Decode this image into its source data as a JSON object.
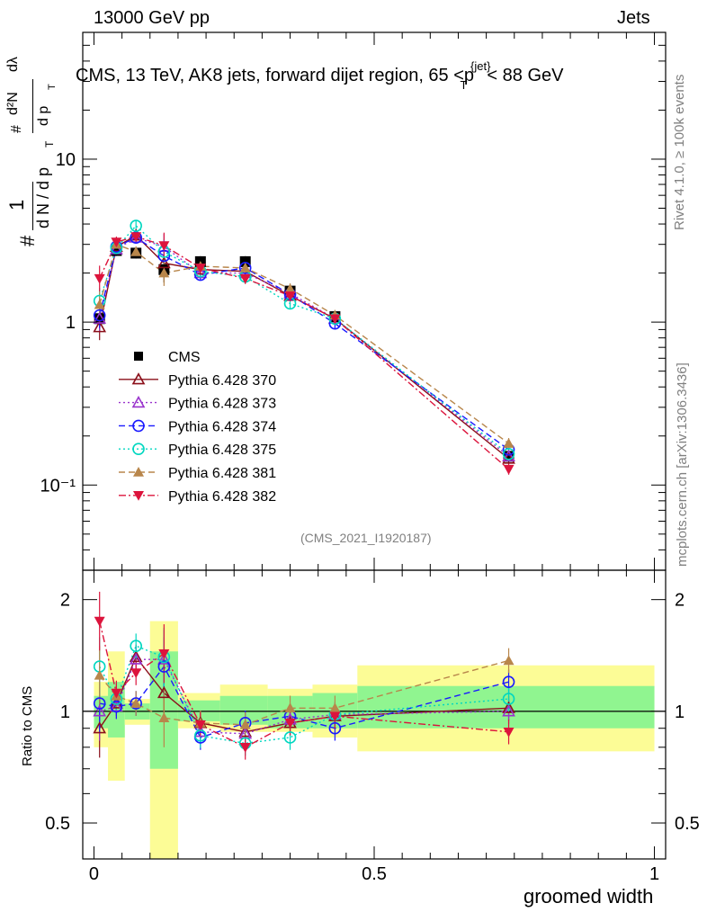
{
  "header": {
    "left": "13000 GeV pp",
    "right": "Jets"
  },
  "side_labels": {
    "rivet": "Rivet 4.1.0, ≥ 100k events",
    "mcplots": "mcplots.cern.ch [arXiv:1306.3436]"
  },
  "colors": {
    "CMS": "#000000",
    "p370": "#8b0f1a",
    "p373": "#9932cc",
    "p374": "#1a1aff",
    "p375": "#00d7c0",
    "p381": "#b8864b",
    "p382": "#dc143c",
    "band_inner": "#90f590",
    "band_outer": "#fcfc96"
  },
  "chart_data": [
    {
      "type": "scatter",
      "title": "CMS, 13 TeV, AK8 jets, forward dijet region, 65 <p_T^{jet}< 88 GeV",
      "analysis_tag": "(CMS_2021_I1920187)",
      "ylabel_parts": {
        "frac_num": "1",
        "frac_den": "d N / d p",
        "sub": "T",
        "hash": "#",
        "deriv_num": "d²N",
        "deriv_den": "d p",
        "lambda": "dλ"
      },
      "yscale": "log",
      "ylim": [
        0.03,
        60
      ],
      "xlim": [
        -0.02,
        1.02
      ],
      "yticks": [
        {
          "v": 0.1,
          "label": "10⁻¹"
        },
        {
          "v": 1,
          "label": "1"
        },
        {
          "v": 10,
          "label": "10"
        }
      ],
      "x": [
        0.01,
        0.04,
        0.075,
        0.125,
        0.19,
        0.27,
        0.35,
        0.43,
        0.74
      ],
      "series": [
        {
          "name": "CMS",
          "key": "CMS",
          "marker": "square",
          "values": [
            1.05,
            2.75,
            2.65,
            2.1,
            2.35,
            2.35,
            1.55,
            1.08,
            0.15
          ]
        },
        {
          "name": "Pythia 6.428 370",
          "key": "p370",
          "marker": "triangle-open",
          "dash": "solid",
          "values": [
            0.93,
            2.9,
            3.4,
            2.3,
            2.1,
            2.05,
            1.45,
            1.05,
            0.145
          ]
        },
        {
          "name": "Pythia 6.428 373",
          "key": "p373",
          "marker": "triangle-open",
          "dash": "dotted",
          "values": [
            1.05,
            2.8,
            3.3,
            2.9,
            2.0,
            2.0,
            1.5,
            1.05,
            0.15
          ]
        },
        {
          "name": "Pythia 6.428 374",
          "key": "p374",
          "marker": "circle-open",
          "dash": "dashed",
          "values": [
            1.1,
            2.9,
            3.3,
            2.55,
            1.95,
            2.15,
            1.48,
            0.98,
            0.165
          ]
        },
        {
          "name": "Pythia 6.428 375",
          "key": "p375",
          "marker": "circle-open",
          "dash": "dotted",
          "values": [
            1.35,
            2.85,
            3.9,
            2.7,
            2.05,
            1.9,
            1.3,
            1.05,
            0.155
          ]
        },
        {
          "name": "Pythia 6.428 381",
          "key": "p381",
          "marker": "triangle-filled",
          "dash": "dashed",
          "values": [
            1.28,
            3.0,
            2.7,
            2.0,
            2.2,
            2.15,
            1.6,
            1.1,
            0.18
          ]
        },
        {
          "name": "Pythia 6.428 382",
          "key": "p382",
          "marker": "triangle-down",
          "dash": "dashdot",
          "values": [
            1.85,
            3.1,
            3.35,
            2.95,
            2.15,
            1.85,
            1.45,
            1.05,
            0.125
          ]
        }
      ]
    },
    {
      "type": "scatter",
      "ylabel": "Ratio to CMS",
      "xlabel": "groomed width",
      "yscale": "log",
      "ylim": [
        0.4,
        2.4
      ],
      "xlim": [
        -0.02,
        1.02
      ],
      "xticks": [
        {
          "v": 0,
          "label": "0"
        },
        {
          "v": 0.5,
          "label": "0.5"
        },
        {
          "v": 1,
          "label": "1"
        }
      ],
      "yticks": [
        {
          "v": 0.5,
          "label": "0.5"
        },
        {
          "v": 1,
          "label": "1"
        },
        {
          "v": 2,
          "label": "2"
        }
      ],
      "bands": [
        {
          "x0": 0.0,
          "x1": 0.025,
          "inner": [
            0.9,
            1.1
          ],
          "outer": [
            0.8,
            1.2
          ]
        },
        {
          "x0": 0.025,
          "x1": 0.055,
          "inner": [
            0.85,
            1.2
          ],
          "outer": [
            0.65,
            1.45
          ]
        },
        {
          "x0": 0.055,
          "x1": 0.1,
          "inner": [
            0.95,
            1.05
          ],
          "outer": [
            0.92,
            1.08
          ]
        },
        {
          "x0": 0.1,
          "x1": 0.15,
          "inner": [
            0.7,
            1.45
          ],
          "outer": [
            0.4,
            1.75
          ]
        },
        {
          "x0": 0.15,
          "x1": 0.225,
          "inner": [
            0.94,
            1.07
          ],
          "outer": [
            0.9,
            1.12
          ]
        },
        {
          "x0": 0.225,
          "x1": 0.31,
          "inner": [
            0.92,
            1.1
          ],
          "outer": [
            0.88,
            1.18
          ]
        },
        {
          "x0": 0.31,
          "x1": 0.39,
          "inner": [
            0.9,
            1.1
          ],
          "outer": [
            0.88,
            1.15
          ]
        },
        {
          "x0": 0.39,
          "x1": 0.47,
          "inner": [
            0.9,
            1.12
          ],
          "outer": [
            0.85,
            1.18
          ]
        },
        {
          "x0": 0.47,
          "x1": 1.0,
          "inner": [
            0.9,
            1.17
          ],
          "outer": [
            0.78,
            1.33
          ]
        }
      ],
      "x": [
        0.01,
        0.04,
        0.075,
        0.125,
        0.19,
        0.27,
        0.35,
        0.43,
        0.74
      ],
      "series": [
        {
          "name": "Pythia 6.428 370",
          "key": "p370",
          "marker": "triangle-open",
          "dash": "solid",
          "values": [
            0.9,
            1.05,
            1.4,
            1.12,
            0.93,
            0.88,
            0.93,
            0.97,
            1.02
          ]
        },
        {
          "name": "Pythia 6.428 373",
          "key": "p373",
          "marker": "triangle-open",
          "dash": "dotted",
          "values": [
            1.0,
            1.03,
            1.38,
            1.38,
            0.88,
            0.87,
            0.95,
            0.98,
            1.0
          ]
        },
        {
          "name": "Pythia 6.428 374",
          "key": "p374",
          "marker": "circle-open",
          "dash": "dashed",
          "values": [
            1.05,
            1.03,
            1.05,
            1.32,
            0.85,
            0.93,
            0.97,
            0.9,
            1.2
          ]
        },
        {
          "name": "Pythia 6.428 375",
          "key": "p375",
          "marker": "circle-open",
          "dash": "dotted",
          "values": [
            1.32,
            1.08,
            1.5,
            1.4,
            0.86,
            0.82,
            0.85,
            0.98,
            1.08
          ]
        },
        {
          "name": "Pythia 6.428 381",
          "key": "p381",
          "marker": "triangle-filled",
          "dash": "dashed",
          "values": [
            1.25,
            1.1,
            1.05,
            0.96,
            0.93,
            0.92,
            1.02,
            1.02,
            1.37
          ]
        },
        {
          "name": "Pythia 6.428 382",
          "key": "p382",
          "marker": "triangle-down",
          "dash": "dashdot",
          "values": [
            1.75,
            1.12,
            1.27,
            1.43,
            0.92,
            0.8,
            0.93,
            0.97,
            0.88
          ]
        }
      ]
    }
  ]
}
